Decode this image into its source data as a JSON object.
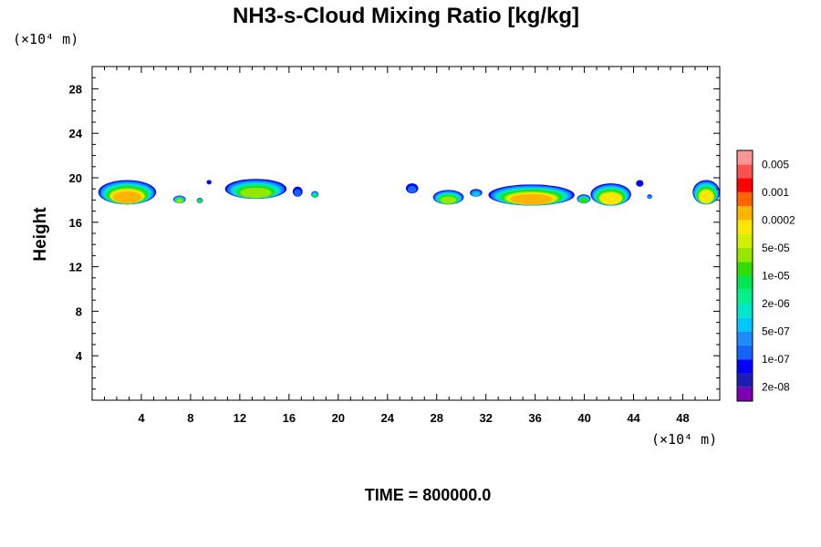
{
  "chart_data": {
    "type": "heatmap",
    "title": "NH3-s-Cloud Mixing Ratio [kg/kg]",
    "ylabel": "Height",
    "x_unit_label": "(×10⁴ m)",
    "y_unit_label": "(×10⁴ m)",
    "xlim": [
      0,
      51
    ],
    "ylim": [
      0,
      30
    ],
    "x_ticks": [
      4,
      8,
      12,
      16,
      20,
      24,
      28,
      32,
      36,
      40,
      44,
      48
    ],
    "y_ticks": [
      4,
      8,
      12,
      16,
      20,
      24,
      28
    ],
    "footer": "TIME = 800000.0",
    "colorbar": {
      "colors": [
        "#7B00B4",
        "#1E1EB4",
        "#0000FF",
        "#1464FF",
        "#1E8CFF",
        "#00C8FF",
        "#00E6C8",
        "#00F08C",
        "#00E650",
        "#32DC00",
        "#96E600",
        "#D2F000",
        "#FFE600",
        "#FFB400",
        "#FF6400",
        "#FF0000",
        "#FF5050",
        "#FF9696"
      ],
      "labels": [
        {
          "text": "2e-08",
          "level": 1
        },
        {
          "text": "1e-07",
          "level": 3
        },
        {
          "text": "5e-07",
          "level": 5
        },
        {
          "text": "2e-06",
          "level": 7
        },
        {
          "text": "1e-05",
          "level": 9
        },
        {
          "text": "5e-05",
          "level": 11
        },
        {
          "text": "0.0002",
          "level": 13
        },
        {
          "text": "0.001",
          "level": 15
        },
        {
          "text": "0.005",
          "level": 17
        }
      ]
    },
    "cloud_blobs": [
      {
        "x0": 0.5,
        "x1": 5.2,
        "ytop": 19.8,
        "ybot": 17.6,
        "peak": 13
      },
      {
        "x0": 6.6,
        "x1": 7.6,
        "ytop": 18.4,
        "ybot": 17.7,
        "peak": 10
      },
      {
        "x0": 8.5,
        "x1": 9.0,
        "ytop": 18.2,
        "ybot": 17.7,
        "peak": 9
      },
      {
        "x0": 9.3,
        "x1": 9.7,
        "ytop": 19.8,
        "ybot": 19.4,
        "peak": 2
      },
      {
        "x0": 10.8,
        "x1": 15.8,
        "ytop": 19.9,
        "ybot": 18.1,
        "peak": 10
      },
      {
        "x0": 16.3,
        "x1": 17.1,
        "ytop": 19.2,
        "ybot": 18.3,
        "peak": 3
      },
      {
        "x0": 17.8,
        "x1": 18.4,
        "ytop": 18.8,
        "ybot": 18.2,
        "peak": 8
      },
      {
        "x0": 25.5,
        "x1": 26.5,
        "ytop": 19.5,
        "ybot": 18.6,
        "peak": 3
      },
      {
        "x0": 27.7,
        "x1": 30.2,
        "ytop": 18.9,
        "ybot": 17.6,
        "peak": 10
      },
      {
        "x0": 30.7,
        "x1": 31.7,
        "ytop": 19.0,
        "ybot": 18.3,
        "peak": 5
      },
      {
        "x0": 32.2,
        "x1": 39.2,
        "ytop": 19.4,
        "ybot": 17.5,
        "peak": 13
      },
      {
        "x0": 39.4,
        "x1": 40.5,
        "ytop": 18.5,
        "ybot": 17.7,
        "peak": 9
      },
      {
        "x0": 40.5,
        "x1": 43.8,
        "ytop": 19.5,
        "ybot": 17.5,
        "peak": 12
      },
      {
        "x0": 44.2,
        "x1": 44.8,
        "ytop": 19.8,
        "ybot": 19.2,
        "peak": 2
      },
      {
        "x0": 45.1,
        "x1": 45.5,
        "ytop": 18.5,
        "ybot": 18.1,
        "peak": 4
      },
      {
        "x0": 48.8,
        "x1": 51.0,
        "ytop": 19.8,
        "ybot": 17.6,
        "peak": 12
      }
    ]
  }
}
